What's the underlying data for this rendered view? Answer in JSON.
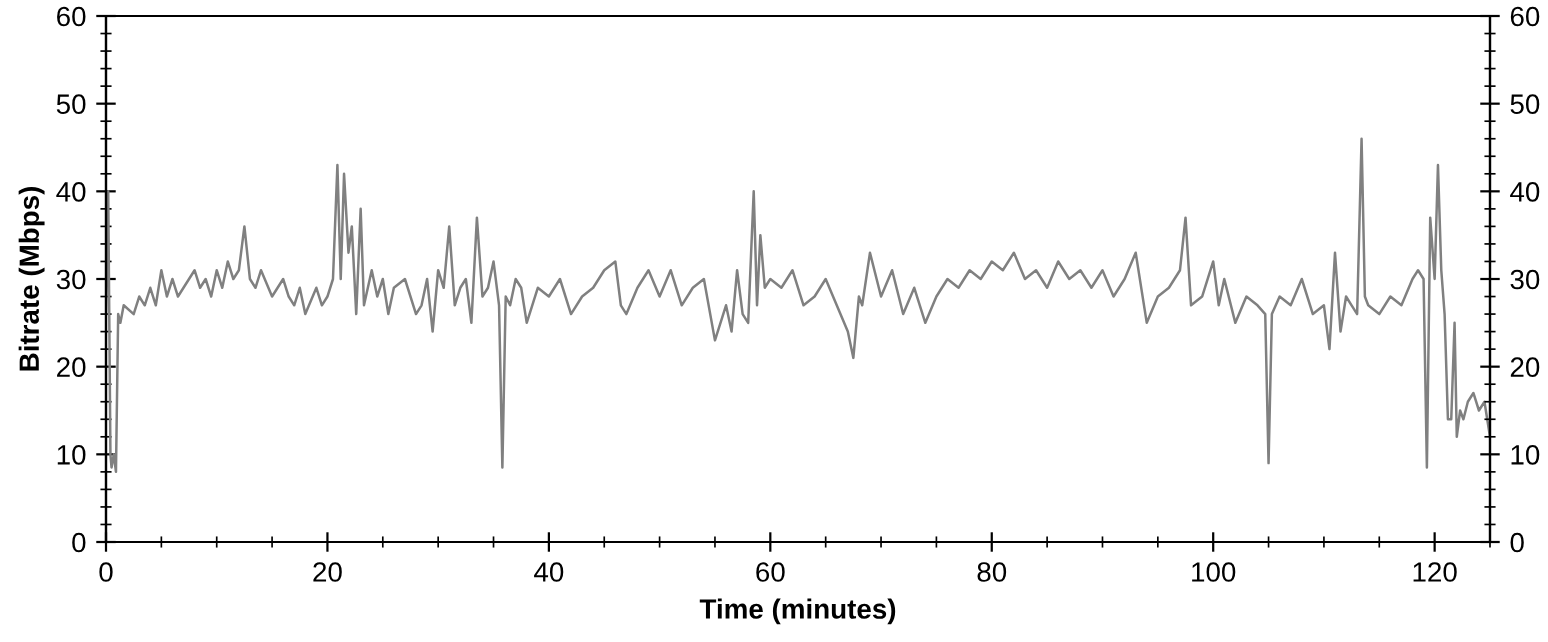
{
  "chart_data": {
    "type": "line",
    "xlabel": "Time (minutes)",
    "ylabel": "Bitrate (Mbps)",
    "xlim": [
      0,
      125
    ],
    "xticks": [
      0,
      20,
      40,
      60,
      80,
      100,
      120
    ],
    "ylim": [
      0,
      60
    ],
    "yticks": [
      0,
      10,
      20,
      30,
      40,
      50,
      60
    ],
    "y2lim": [
      0,
      60
    ],
    "y2ticks": [
      0,
      10,
      20,
      30,
      40,
      50,
      60
    ],
    "grid": false,
    "marker": "none",
    "line_style": "solid",
    "series": [
      {
        "color": "#808080",
        "x": [
          0,
          0.2,
          0.4,
          0.5,
          0.7,
          0.9,
          1.1,
          1.3,
          1.6,
          2.5,
          3,
          3.5,
          4,
          4.5,
          5,
          5.5,
          6,
          6.5,
          7,
          7.5,
          8,
          8.5,
          9,
          9.5,
          10,
          10.5,
          11,
          11.5,
          12,
          12.5,
          13,
          13.5,
          14,
          15,
          16,
          16.5,
          17,
          17.5,
          18,
          19,
          19.5,
          20,
          20.5,
          20.9,
          21.2,
          21.5,
          21.9,
          22.2,
          22.6,
          23,
          23.3,
          24,
          24.5,
          25,
          25.5,
          26,
          27,
          28,
          28.5,
          29,
          29.5,
          30,
          30.5,
          31,
          31.5,
          32,
          32.5,
          33,
          33.5,
          34,
          34.5,
          35,
          35.5,
          35.8,
          36.1,
          36.5,
          37,
          37.5,
          38,
          38.5,
          39,
          40,
          41,
          42,
          43,
          44,
          45,
          46,
          46.5,
          47,
          48,
          49,
          50,
          51,
          52,
          53,
          54,
          55,
          56,
          56.5,
          57,
          57.5,
          58,
          58.5,
          58.8,
          59.1,
          59.5,
          60,
          61,
          62,
          63,
          64,
          65,
          66,
          67,
          67.5,
          68,
          68.3,
          69,
          70,
          71,
          72,
          73,
          74,
          75,
          76,
          77,
          78,
          79,
          80,
          81,
          82,
          83,
          84,
          85,
          86,
          87,
          88,
          89,
          90,
          91,
          92,
          93,
          94,
          95,
          96,
          97,
          97.5,
          98,
          99,
          100,
          100.5,
          101,
          102,
          103,
          104,
          104.7,
          105,
          105.3,
          106,
          107,
          108,
          109,
          110,
          110.5,
          111,
          111.5,
          112,
          112.5,
          113,
          113.4,
          113.7,
          114,
          115,
          116,
          117,
          118,
          118.5,
          119,
          119.3,
          119.6,
          120,
          120.3,
          120.6,
          120.9,
          121.2,
          121.5,
          121.8,
          122,
          122.3,
          122.6,
          123,
          123.5,
          124,
          124.5,
          125
        ],
        "values": [
          26,
          40,
          10,
          8.5,
          10,
          8,
          26,
          25,
          27,
          26,
          28,
          27,
          29,
          27,
          31,
          28,
          30,
          28,
          29,
          30,
          31,
          29,
          30,
          28,
          31,
          29,
          32,
          30,
          31,
          36,
          30,
          29,
          31,
          28,
          30,
          28,
          27,
          29,
          26,
          29,
          27,
          28,
          30,
          43,
          30,
          42,
          33,
          36,
          26,
          38,
          27,
          31,
          28,
          30,
          26,
          29,
          30,
          26,
          27,
          30,
          24,
          31,
          29,
          36,
          27,
          29,
          30,
          25,
          37,
          28,
          29,
          32,
          27,
          8.5,
          28,
          27,
          30,
          29,
          25,
          27,
          29,
          28,
          30,
          26,
          28,
          29,
          31,
          32,
          27,
          26,
          29,
          31,
          28,
          31,
          27,
          29,
          30,
          23,
          27,
          24,
          31,
          26,
          25,
          40,
          27,
          35,
          29,
          30,
          29,
          31,
          27,
          28,
          30,
          27,
          24,
          21,
          28,
          27,
          33,
          28,
          31,
          26,
          29,
          25,
          28,
          30,
          29,
          31,
          30,
          32,
          31,
          33,
          30,
          31,
          29,
          32,
          30,
          31,
          29,
          31,
          28,
          30,
          33,
          25,
          28,
          29,
          31,
          37,
          27,
          28,
          32,
          27,
          30,
          25,
          28,
          27,
          26,
          9,
          26,
          28,
          27,
          30,
          26,
          27,
          22,
          33,
          24,
          28,
          27,
          26,
          46,
          28,
          27,
          26,
          28,
          27,
          30,
          31,
          30,
          8.5,
          37,
          30,
          43,
          31,
          26,
          14,
          14,
          25,
          12,
          15,
          14,
          16,
          17,
          15,
          16,
          12
        ]
      }
    ]
  }
}
